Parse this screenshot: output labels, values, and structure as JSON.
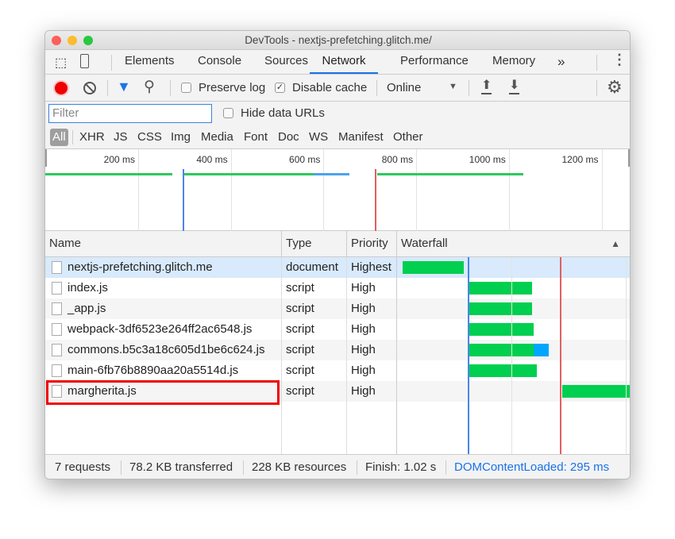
{
  "window": {
    "title": "DevTools - nextjs-prefetching.glitch.me/"
  },
  "tabs": [
    {
      "label": "Elements"
    },
    {
      "label": "Console"
    },
    {
      "label": "Sources"
    },
    {
      "label": "Network",
      "active": true
    },
    {
      "label": "Performance"
    },
    {
      "label": "Memory"
    }
  ],
  "tabs_more": "»",
  "toolbar": {
    "preserve_log": "Preserve log",
    "preserve_log_checked": false,
    "disable_cache": "Disable cache",
    "disable_cache_checked": true,
    "throttling": "Online"
  },
  "filter": {
    "placeholder": "Filter",
    "hide_data_urls": "Hide data URLs"
  },
  "types": [
    "All",
    "XHR",
    "JS",
    "CSS",
    "Img",
    "Media",
    "Font",
    "Doc",
    "WS",
    "Manifest",
    "Other"
  ],
  "overview": {
    "ticks": [
      "200 ms",
      "400 ms",
      "600 ms",
      "800 ms",
      "1000 ms",
      "1200 ms"
    ]
  },
  "columns": {
    "name": "Name",
    "type": "Type",
    "priority": "Priority",
    "waterfall": "Waterfall"
  },
  "rows": [
    {
      "name": "nextjs-prefetching.glitch.me",
      "type": "document",
      "priority": "Highest",
      "selected": true
    },
    {
      "name": "index.js",
      "type": "script",
      "priority": "High"
    },
    {
      "name": "_app.js",
      "type": "script",
      "priority": "High"
    },
    {
      "name": "webpack-3df6523e264ff2ac6548.js",
      "type": "script",
      "priority": "High"
    },
    {
      "name": "commons.b5c3a18c605d1be6c624.js",
      "type": "script",
      "priority": "High"
    },
    {
      "name": "main-6fb76b8890aa20a5514d.js",
      "type": "script",
      "priority": "High"
    },
    {
      "name": "margherita.js",
      "type": "script",
      "priority": "High",
      "highlighted": true
    }
  ],
  "status": {
    "requests": "7 requests",
    "transferred": "78.2 KB transferred",
    "resources": "228 KB resources",
    "finish": "Finish: 1.02 s",
    "dcl": "DOMContentLoaded: 295 ms"
  },
  "colors": {
    "accent": "#1a73e8",
    "record": "#ee0000",
    "bar_green": "#00cf4f",
    "bar_blue": "#00a6ff",
    "load_line": "#e06060",
    "dcl_line": "#4a86e8",
    "highlight": "#ee0000"
  }
}
